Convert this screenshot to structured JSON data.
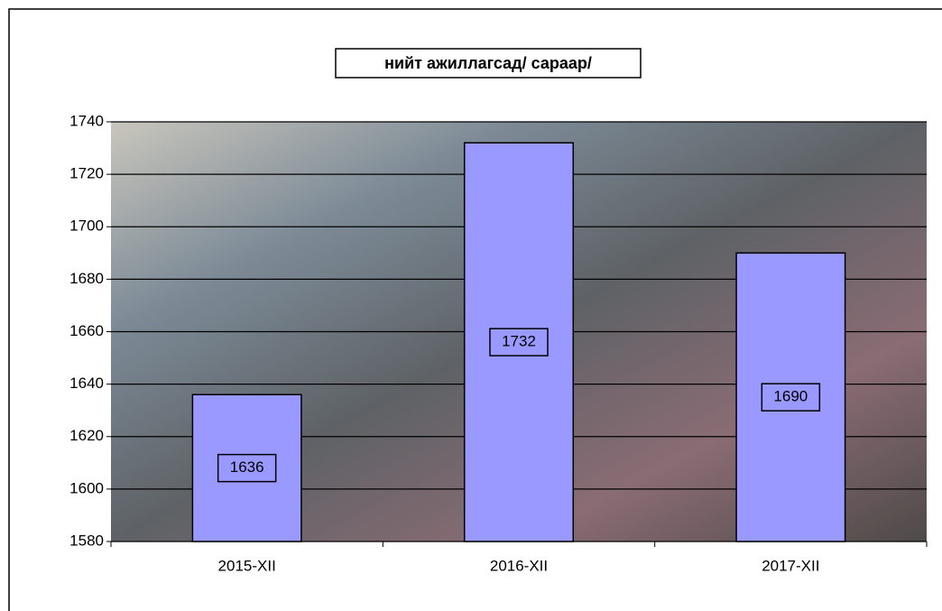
{
  "chart_data": {
    "type": "bar",
    "title": "нийт ажиллагсад/ сараар/",
    "categories": [
      "2015-XII",
      "2016-XII",
      "2017-XII"
    ],
    "values": [
      1636,
      1732,
      1690
    ],
    "color": "#9999ff",
    "ylim": [
      1580,
      1740
    ],
    "yticks": [
      1580,
      1600,
      1620,
      1640,
      1660,
      1680,
      1700,
      1720,
      1740
    ],
    "grid": true
  }
}
